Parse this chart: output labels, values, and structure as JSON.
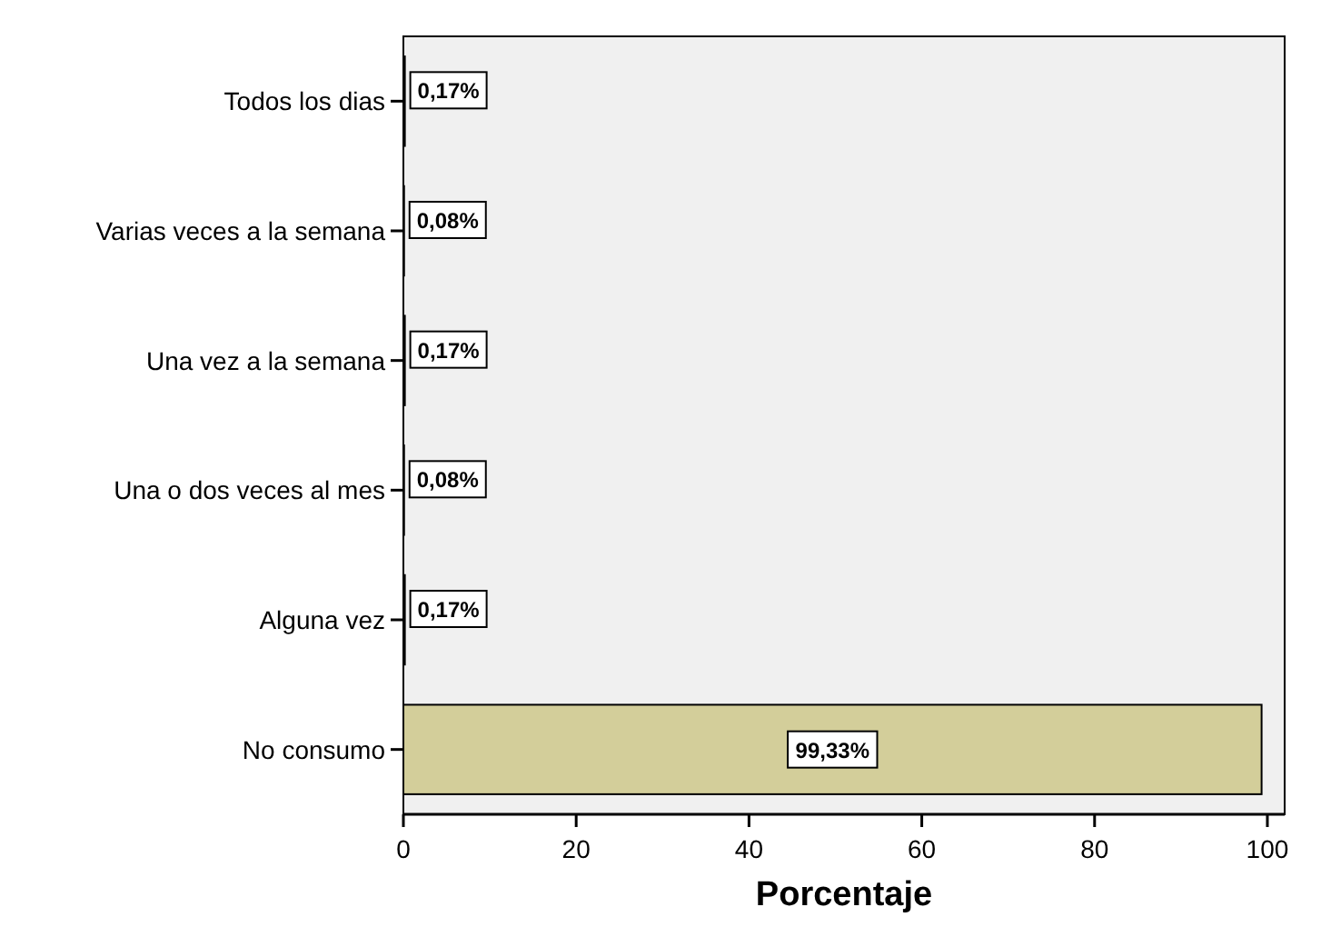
{
  "chart_data": {
    "type": "bar",
    "orientation": "horizontal",
    "xlabel": "Porcentaje",
    "categories": [
      "Todos los dias",
      "Varias veces a la semana",
      "Una vez a la semana",
      "Una o dos veces al mes",
      "Alguna vez",
      "No consumo"
    ],
    "values": [
      0.17,
      0.08,
      0.17,
      0.08,
      0.17,
      99.33
    ],
    "value_labels": [
      "0,17%",
      "0,08%",
      "0,17%",
      "0,08%",
      "0,17%",
      "99,33%"
    ],
    "color": "#d3ce9a",
    "xlim": [
      0,
      102
    ],
    "xticks": [
      0,
      20,
      40,
      60,
      80,
      100
    ],
    "grid": false
  }
}
